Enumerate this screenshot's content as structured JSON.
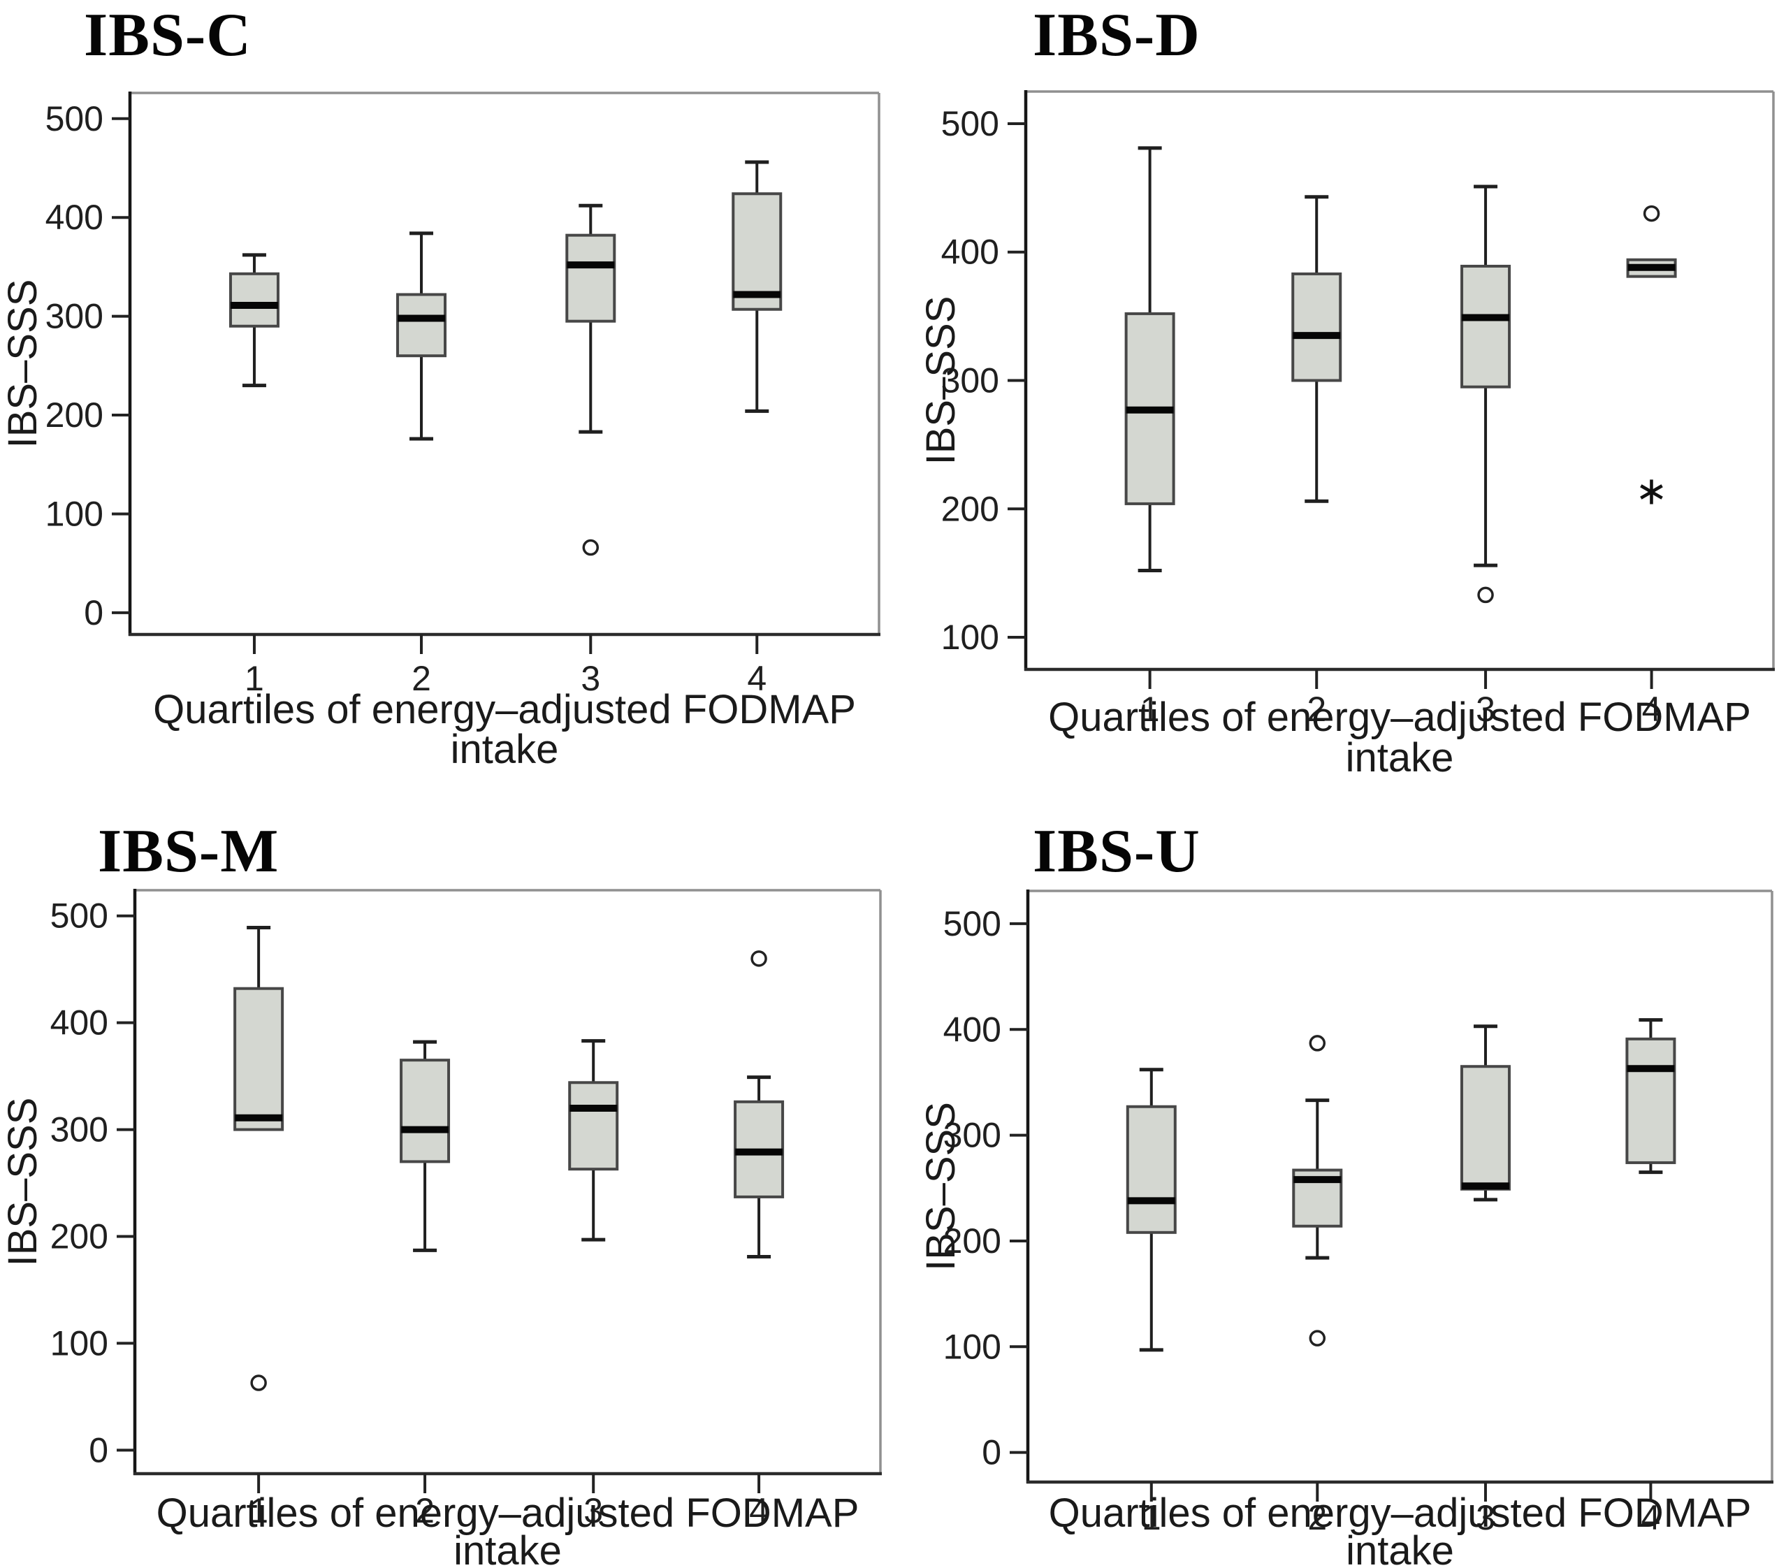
{
  "figure": {
    "background": "#ffffff",
    "y_axis_label": "IBS–SSS",
    "x_axis_label_line1": "Quartiles of energy–adjusted FODMAP",
    "x_axis_label_line2": "intake",
    "colors": {
      "box_fill": "#d4d7d1",
      "box_stroke": "#474747",
      "median": "#060606",
      "whisker": "#1f1f1f",
      "frame": "#909090",
      "axis": "#2b2b2b",
      "outlier_stroke": "#222222"
    }
  },
  "chart_data": [
    {
      "type": "box",
      "title": "IBS-C",
      "xlabel": "Quartiles of energy–adjusted FODMAP intake",
      "ylabel": "IBS–SSS",
      "categories": [
        "1",
        "2",
        "3",
        "4"
      ],
      "ylim": [
        -22,
        526
      ],
      "yticks": [
        0,
        100,
        200,
        300,
        400,
        500
      ],
      "series": [
        {
          "category": "1",
          "whisker_low": 230,
          "q1": 290,
          "median": 311,
          "q3": 343,
          "whisker_high": 362,
          "outliers": [],
          "extremes": []
        },
        {
          "category": "2",
          "whisker_low": 176,
          "q1": 260,
          "median": 298,
          "q3": 322,
          "whisker_high": 384,
          "outliers": [],
          "extremes": []
        },
        {
          "category": "3",
          "whisker_low": 183,
          "q1": 295,
          "median": 352,
          "q3": 382,
          "whisker_high": 412,
          "outliers": [
            66
          ],
          "extremes": []
        },
        {
          "category": "4",
          "whisker_low": 204,
          "q1": 307,
          "median": 322,
          "q3": 424,
          "whisker_high": 456,
          "outliers": [],
          "extremes": []
        }
      ]
    },
    {
      "type": "box",
      "title": "IBS-D",
      "xlabel": "Quartiles of energy–adjusted FODMAP intake",
      "ylabel": "IBS–SSS",
      "categories": [
        "1",
        "2",
        "3",
        "4"
      ],
      "ylim": [
        75,
        525
      ],
      "yticks": [
        100,
        200,
        300,
        400,
        500
      ],
      "series": [
        {
          "category": "1",
          "whisker_low": 152,
          "q1": 204,
          "median": 277,
          "q3": 352,
          "whisker_high": 481,
          "outliers": [],
          "extremes": []
        },
        {
          "category": "2",
          "whisker_low": 206,
          "q1": 300,
          "median": 335,
          "q3": 383,
          "whisker_high": 443,
          "outliers": [],
          "extremes": []
        },
        {
          "category": "3",
          "whisker_low": 156,
          "q1": 295,
          "median": 349,
          "q3": 389,
          "whisker_high": 451,
          "outliers": [
            133
          ],
          "extremes": []
        },
        {
          "category": "4",
          "whisker_low": 381,
          "q1": 381,
          "median": 388,
          "q3": 394,
          "whisker_high": 394,
          "outliers": [
            430
          ],
          "extremes": [
            214
          ]
        }
      ]
    },
    {
      "type": "box",
      "title": "IBS-M",
      "xlabel": "Quartiles of energy–adjusted FODMAP intake",
      "ylabel": "IBS–SSS",
      "categories": [
        "1",
        "2",
        "3",
        "4"
      ],
      "ylim": [
        -22,
        524
      ],
      "yticks": [
        0,
        100,
        200,
        300,
        400,
        500
      ],
      "series": [
        {
          "category": "1",
          "whisker_low": 300,
          "q1": 300,
          "median": 311,
          "q3": 432,
          "whisker_high": 489,
          "outliers": [
            63
          ],
          "extremes": []
        },
        {
          "category": "2",
          "whisker_low": 187,
          "q1": 270,
          "median": 300,
          "q3": 365,
          "whisker_high": 382,
          "outliers": [],
          "extremes": []
        },
        {
          "category": "3",
          "whisker_low": 197,
          "q1": 263,
          "median": 320,
          "q3": 344,
          "whisker_high": 383,
          "outliers": [],
          "extremes": []
        },
        {
          "category": "4",
          "whisker_low": 181,
          "q1": 237,
          "median": 279,
          "q3": 326,
          "whisker_high": 349,
          "outliers": [
            460
          ],
          "extremes": []
        }
      ]
    },
    {
      "type": "box",
      "title": "IBS-U",
      "xlabel": "Quartiles of energy–adjusted FODMAP intake",
      "ylabel": "IBS–SSS",
      "categories": [
        "1",
        "2",
        "3",
        "4"
      ],
      "ylim": [
        -28,
        531
      ],
      "yticks": [
        0,
        100,
        200,
        300,
        400,
        500
      ],
      "series": [
        {
          "category": "1",
          "whisker_low": 97,
          "q1": 208,
          "median": 238,
          "q3": 327,
          "whisker_high": 362,
          "outliers": [],
          "extremes": []
        },
        {
          "category": "2",
          "whisker_low": 184,
          "q1": 214,
          "median": 258,
          "q3": 267,
          "whisker_high": 333,
          "outliers": [
            387,
            108
          ],
          "extremes": []
        },
        {
          "category": "3",
          "whisker_low": 239,
          "q1": 249,
          "median": 252,
          "q3": 365,
          "whisker_high": 403,
          "outliers": [],
          "extremes": []
        },
        {
          "category": "4",
          "whisker_low": 265,
          "q1": 274,
          "median": 363,
          "q3": 391,
          "whisker_high": 409,
          "outliers": [],
          "extremes": []
        }
      ]
    }
  ]
}
